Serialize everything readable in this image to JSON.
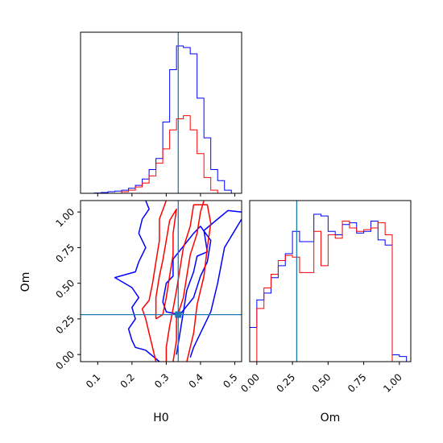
{
  "chart_data": [
    {
      "type": "histogram",
      "panel": "H0 marginal",
      "x_range": [
        0.05,
        0.52
      ],
      "truth": 0.335,
      "series": [
        {
          "color": "#0000ff",
          "bin_edges": [
            0.05,
            0.07,
            0.09,
            0.11,
            0.13,
            0.15,
            0.17,
            0.19,
            0.21,
            0.23,
            0.25,
            0.27,
            0.29,
            0.31,
            0.33,
            0.35,
            0.37,
            0.39,
            0.41,
            0.43,
            0.45,
            0.47,
            0.49,
            0.51
          ],
          "values": [
            0,
            0,
            0.2,
            0.5,
            1.0,
            1.4,
            2.0,
            3.2,
            5.0,
            9.0,
            15.0,
            22.0,
            45.0,
            78.0,
            93.0,
            92.0,
            88.0,
            60.0,
            35.0,
            15.0,
            8.0,
            2.0,
            0
          ]
        },
        {
          "color": "#ff0000",
          "bin_edges": [
            0.17,
            0.19,
            0.21,
            0.23,
            0.25,
            0.27,
            0.29,
            0.31,
            0.33,
            0.35,
            0.37,
            0.39,
            0.41,
            0.43,
            0.45
          ],
          "values": [
            1.0,
            2.0,
            4.0,
            6.5,
            11.0,
            19.0,
            28.0,
            40.0,
            47.0,
            49.0,
            40.0,
            25.0,
            10.0,
            2.0
          ]
        }
      ]
    },
    {
      "type": "contour",
      "panel": "H0 vs Om",
      "xlabel": "H0",
      "ylabel": "Om",
      "xlim": [
        0.05,
        0.52
      ],
      "ylim": [
        -0.05,
        1.08
      ],
      "x_ticks": [
        "0.1",
        "0.2",
        "0.3",
        "0.4",
        "0.5"
      ],
      "y_ticks": [
        "0.00",
        "0.25",
        "0.50",
        "0.75",
        "1.00"
      ],
      "truth": {
        "H0": 0.335,
        "Om": 0.28
      },
      "series": [
        {
          "color": "#0000ff",
          "contours": [
            [
              [
                0.28,
                -0.05
              ],
              [
                0.24,
                0.03
              ],
              [
                0.21,
                0.05
              ],
              [
                0.2,
                0.1
              ],
              [
                0.19,
                0.18
              ],
              [
                0.21,
                0.25
              ],
              [
                0.2,
                0.33
              ],
              [
                0.22,
                0.4
              ],
              [
                0.2,
                0.47
              ],
              [
                0.15,
                0.54
              ],
              [
                0.21,
                0.58
              ],
              [
                0.22,
                0.65
              ],
              [
                0.24,
                0.75
              ],
              [
                0.22,
                0.85
              ],
              [
                0.23,
                0.95
              ],
              [
                0.25,
                1.02
              ],
              [
                0.24,
                1.08
              ]
            ],
            [
              [
                0.33,
                0.0
              ],
              [
                0.34,
                0.15
              ],
              [
                0.35,
                0.3
              ],
              [
                0.36,
                0.45
              ],
              [
                0.38,
                0.58
              ],
              [
                0.39,
                0.69
              ],
              [
                0.42,
                0.72
              ],
              [
                0.41,
                0.87
              ],
              [
                0.45,
                0.95
              ],
              [
                0.48,
                1.01
              ],
              [
                0.52,
                1.0
              ]
            ],
            [
              [
                0.52,
                0.95
              ],
              [
                0.47,
                0.75
              ],
              [
                0.45,
                0.5
              ],
              [
                0.43,
                0.3
              ],
              [
                0.4,
                0.15
              ],
              [
                0.38,
                0.05
              ],
              [
                0.37,
                -0.02
              ]
            ],
            [
              [
                0.29,
                0.37
              ],
              [
                0.3,
                0.5
              ],
              [
                0.32,
                0.55
              ],
              [
                0.32,
                0.67
              ],
              [
                0.35,
                0.76
              ],
              [
                0.38,
                0.85
              ],
              [
                0.4,
                0.9
              ],
              [
                0.43,
                0.8
              ],
              [
                0.42,
                0.65
              ],
              [
                0.4,
                0.55
              ],
              [
                0.38,
                0.4
              ],
              [
                0.34,
                0.28
              ],
              [
                0.3,
                0.3
              ],
              [
                0.29,
                0.37
              ]
            ]
          ]
        },
        {
          "color": "#ff0000",
          "contours": [
            [
              [
                0.27,
                -0.05
              ],
              [
                0.26,
                0.05
              ],
              [
                0.25,
                0.15
              ],
              [
                0.24,
                0.25
              ],
              [
                0.23,
                0.32
              ],
              [
                0.25,
                0.38
              ],
              [
                0.26,
                0.5
              ],
              [
                0.27,
                0.65
              ],
              [
                0.28,
                0.8
              ],
              [
                0.28,
                0.95
              ],
              [
                0.3,
                1.08
              ]
            ],
            [
              [
                0.32,
                -0.05
              ],
              [
                0.33,
                0.1
              ],
              [
                0.33,
                0.25
              ],
              [
                0.35,
                0.4
              ],
              [
                0.36,
                0.55
              ],
              [
                0.37,
                0.7
              ],
              [
                0.39,
                0.85
              ],
              [
                0.4,
                1.0
              ],
              [
                0.41,
                1.08
              ]
            ],
            [
              [
                0.36,
                -0.05
              ],
              [
                0.38,
                0.15
              ],
              [
                0.39,
                0.35
              ],
              [
                0.41,
                0.55
              ],
              [
                0.42,
                0.75
              ],
              [
                0.43,
                0.92
              ],
              [
                0.42,
                1.05
              ],
              [
                0.38,
                1.05
              ],
              [
                0.37,
                0.9
              ],
              [
                0.35,
                0.75
              ],
              [
                0.34,
                0.6
              ],
              [
                0.33,
                0.45
              ],
              [
                0.32,
                0.32
              ],
              [
                0.31,
                0.2
              ],
              [
                0.3,
                0.05
              ],
              [
                0.3,
                -0.05
              ]
            ],
            [
              [
                0.27,
                0.25
              ],
              [
                0.27,
                0.4
              ],
              [
                0.28,
                0.55
              ],
              [
                0.29,
                0.66
              ],
              [
                0.3,
                0.8
              ],
              [
                0.31,
                0.94
              ],
              [
                0.33,
                1.02
              ],
              [
                0.32,
                0.85
              ],
              [
                0.32,
                0.7
              ],
              [
                0.31,
                0.55
              ],
              [
                0.3,
                0.4
              ],
              [
                0.29,
                0.28
              ],
              [
                0.27,
                0.25
              ]
            ]
          ]
        }
      ]
    },
    {
      "type": "histogram",
      "panel": "Om marginal",
      "xlabel": "Om",
      "x_range": [
        -0.05,
        1.08
      ],
      "x_ticks": [
        "0.00",
        "0.25",
        "0.50",
        "0.75",
        "1.00"
      ],
      "truth": 0.28,
      "series": [
        {
          "color": "#0000ff",
          "bin_edges": [
            -0.05,
            0.0,
            0.05,
            0.1,
            0.15,
            0.2,
            0.25,
            0.3,
            0.35,
            0.4,
            0.45,
            0.5,
            0.55,
            0.6,
            0.65,
            0.7,
            0.75,
            0.8,
            0.85,
            0.9,
            0.95,
            1.0,
            1.05
          ],
          "values": [
            20,
            36,
            40,
            49,
            56,
            63,
            76,
            70,
            70,
            86,
            85,
            76,
            74,
            80,
            81,
            75,
            76,
            82,
            71,
            68,
            4,
            3
          ]
        },
        {
          "color": "#ff0000",
          "bin_edges": [
            0.0,
            0.05,
            0.1,
            0.15,
            0.2,
            0.25,
            0.3,
            0.35,
            0.4,
            0.45,
            0.5,
            0.55,
            0.6,
            0.65,
            0.7,
            0.75,
            0.8,
            0.85,
            0.9,
            0.95,
            1.0
          ],
          "values": [
            31,
            43,
            51,
            59,
            62,
            61,
            52,
            52,
            76,
            56,
            74,
            72,
            82,
            78,
            76,
            77,
            78,
            81,
            74,
            0
          ]
        }
      ]
    }
  ]
}
